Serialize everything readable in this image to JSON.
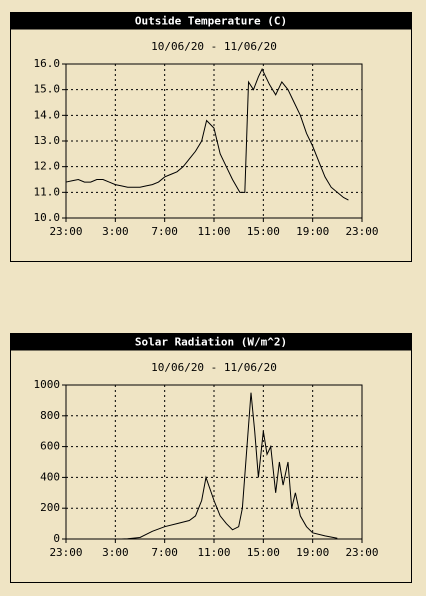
{
  "chart_data": [
    {
      "type": "line",
      "title": "Outside Temperature (C)",
      "subtitle": "10/06/20 - 11/06/20",
      "x": [
        0,
        0.5,
        1,
        1.5,
        2,
        2.5,
        3,
        3.5,
        4,
        4.5,
        5,
        5.5,
        6,
        6.5,
        7,
        7.5,
        8,
        8.5,
        9,
        9.5,
        10,
        10.5,
        11,
        11.4,
        12,
        12.5,
        13,
        13.5,
        14.1,
        14.5,
        14.8,
        15.2,
        15.6,
        15.9,
        16.5,
        17,
        17.5,
        18,
        18.5,
        19,
        19.5,
        20,
        20.5,
        21,
        21.5,
        22,
        22.5,
        22.9
      ],
      "series": [
        {
          "color": "#000000",
          "values": [
            11.4,
            11.45,
            11.5,
            11.4,
            11.4,
            11.5,
            11.5,
            11.4,
            11.3,
            11.25,
            11.2,
            11.2,
            11.2,
            11.25,
            11.3,
            11.4,
            11.6,
            11.7,
            11.8,
            12.0,
            12.3,
            12.6,
            13.0,
            13.8,
            13.5,
            12.5,
            12.0,
            11.5,
            11.0,
            11.0,
            15.3,
            15.0,
            15.5,
            15.8,
            15.2,
            14.8,
            15.3,
            15.0,
            14.5,
            14.0,
            13.3,
            12.8,
            12.2,
            11.6,
            11.2,
            11.0,
            10.8,
            10.7
          ]
        }
      ],
      "xlim": [
        0,
        24
      ],
      "xticks": [
        {
          "value": 0,
          "label": "23:00"
        },
        {
          "value": 4,
          "label": "3:00"
        },
        {
          "value": 8,
          "label": "7:00"
        },
        {
          "value": 12,
          "label": "11:00"
        },
        {
          "value": 16,
          "label": "15:00"
        },
        {
          "value": 20,
          "label": "19:00"
        },
        {
          "value": 24,
          "label": "23:00"
        }
      ],
      "ylim": [
        10,
        16
      ],
      "yticks": [
        {
          "value": 10,
          "label": "10.0"
        },
        {
          "value": 11,
          "label": "11.0"
        },
        {
          "value": 12,
          "label": "12.0"
        },
        {
          "value": 13,
          "label": "13.0"
        },
        {
          "value": 14,
          "label": "14.0"
        },
        {
          "value": 15,
          "label": "15.0"
        },
        {
          "value": 16,
          "label": "16.0"
        }
      ],
      "grid": true
    },
    {
      "type": "line",
      "title": "Solar Radiation (W/m^2)",
      "subtitle": "10/06/20 - 11/06/20",
      "x": [
        4.5,
        5,
        6,
        7,
        8,
        9,
        10,
        10.5,
        11,
        11.35,
        12,
        12.5,
        13,
        13.5,
        14,
        14.3,
        15,
        15.3,
        15.6,
        16,
        16.3,
        16.6,
        17,
        17.3,
        17.6,
        18,
        18.3,
        18.6,
        19,
        19.5,
        20,
        21,
        22
      ],
      "series": [
        {
          "color": "#000000",
          "values": [
            0,
            2,
            10,
            50,
            80,
            100,
            120,
            150,
            250,
            400,
            250,
            150,
            100,
            60,
            80,
            200,
            950,
            700,
            400,
            700,
            550,
            600,
            300,
            500,
            350,
            500,
            200,
            300,
            150,
            80,
            40,
            20,
            5
          ]
        }
      ],
      "xlim": [
        0,
        24
      ],
      "xticks": [
        {
          "value": 0,
          "label": "23:00"
        },
        {
          "value": 4,
          "label": "3:00"
        },
        {
          "value": 8,
          "label": "7:00"
        },
        {
          "value": 12,
          "label": "11:00"
        },
        {
          "value": 16,
          "label": "15:00"
        },
        {
          "value": 20,
          "label": "19:00"
        },
        {
          "value": 24,
          "label": "23:00"
        }
      ],
      "ylim": [
        0,
        1000
      ],
      "yticks": [
        0,
        200,
        400,
        600,
        800,
        1000
      ],
      "grid": true
    }
  ]
}
